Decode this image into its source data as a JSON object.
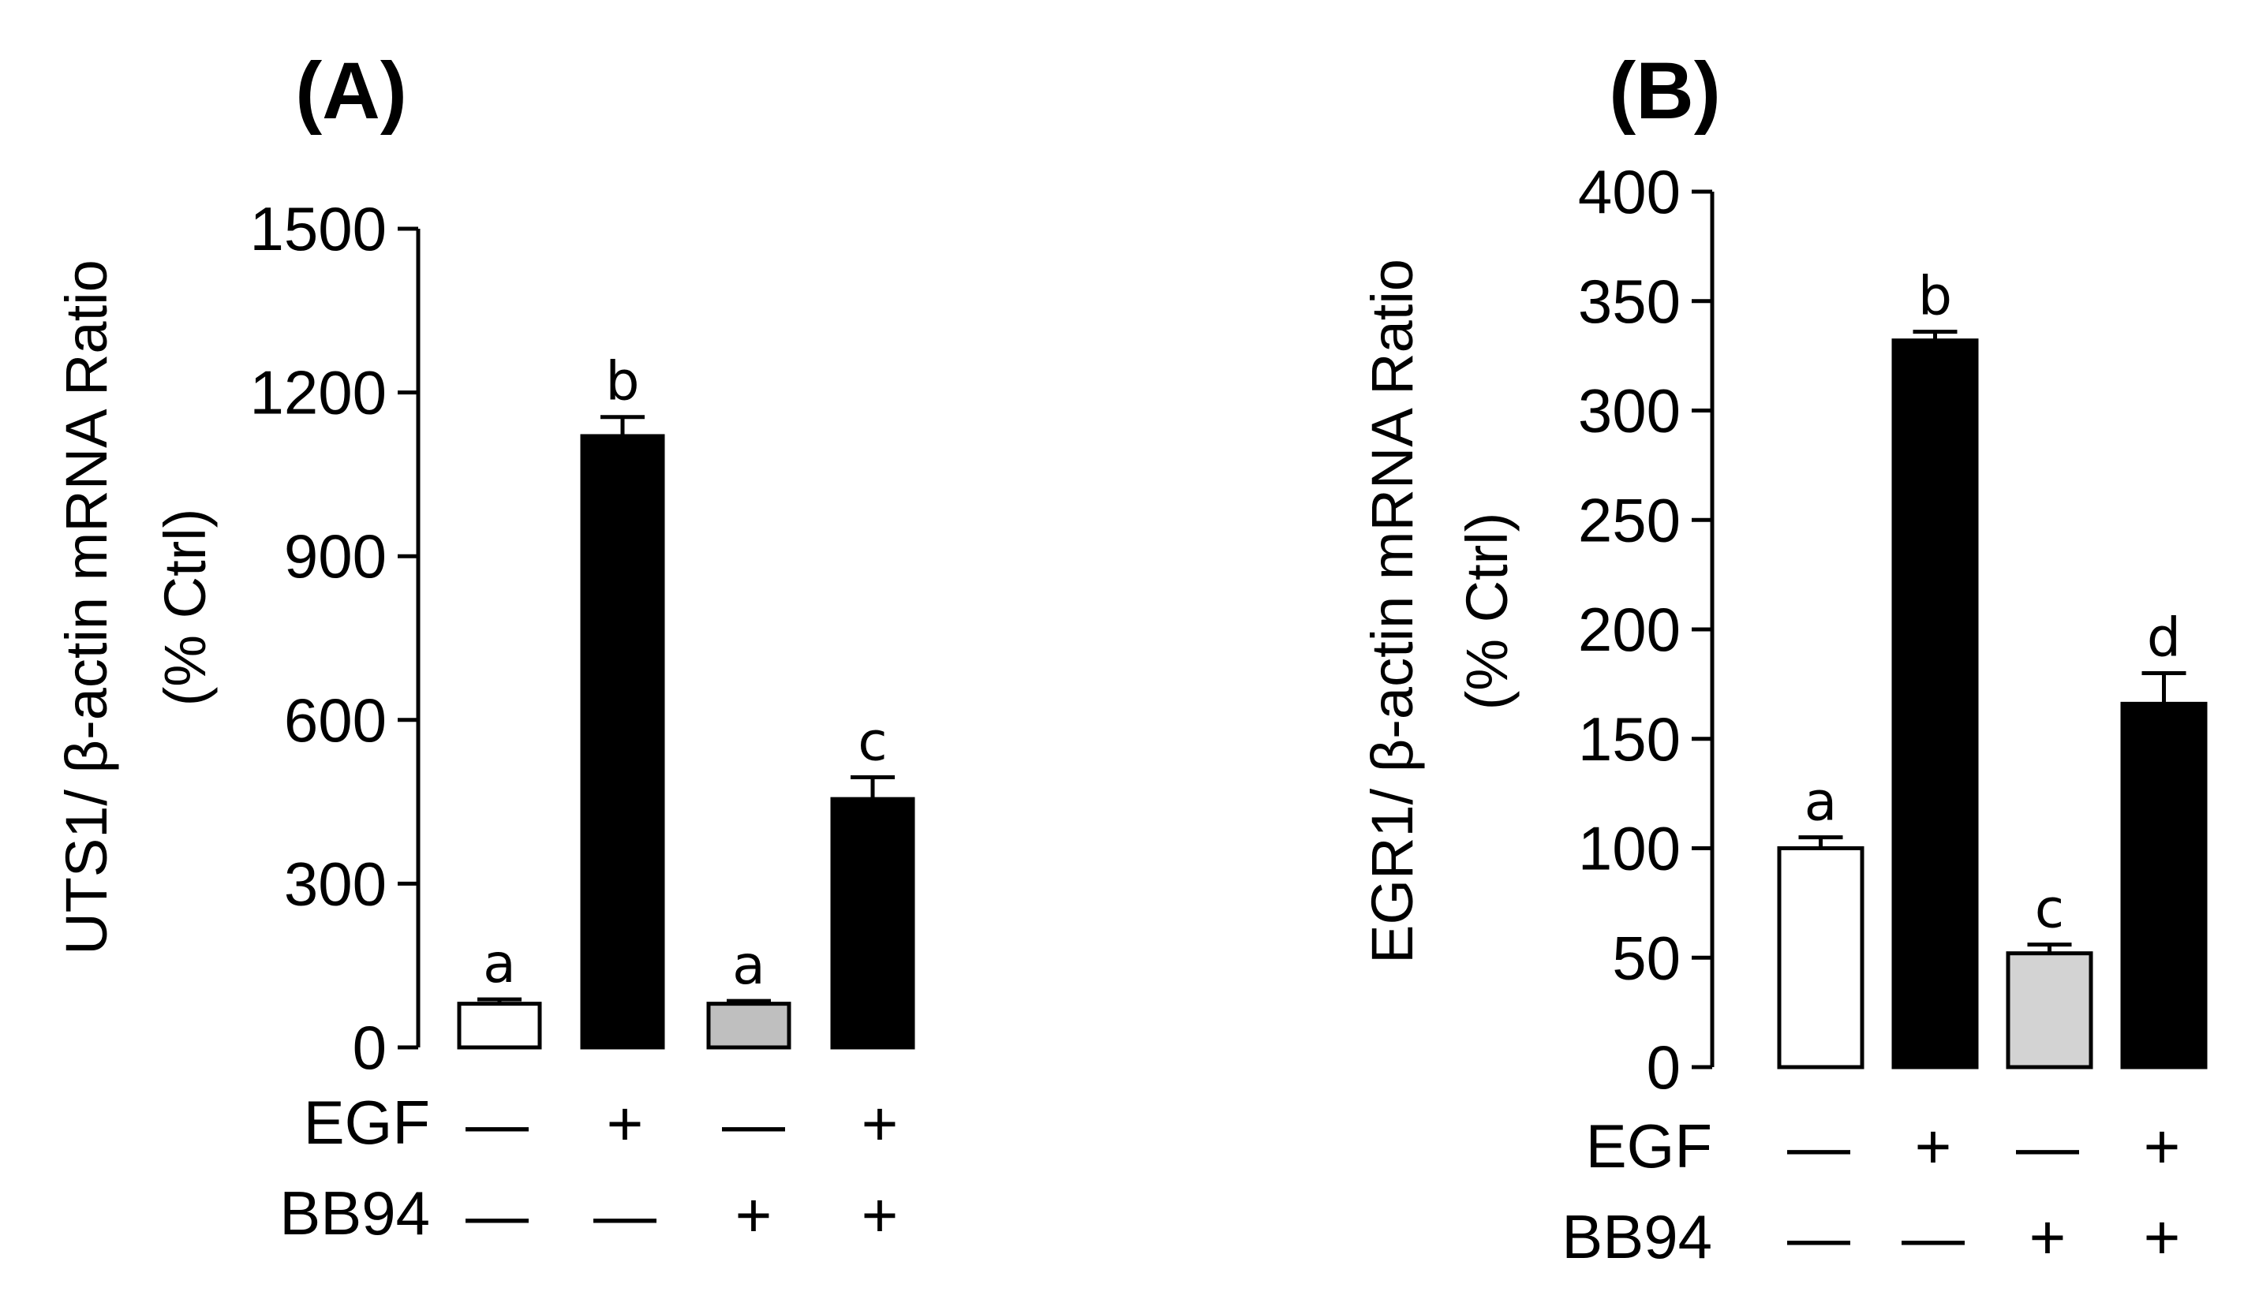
{
  "chart_data": [
    {
      "type": "bar",
      "title": "(A)",
      "ylabel": "UTS1/ β-actin mRNA Ratio",
      "ylabel2": "(% Ctrl)",
      "ylim": [
        0,
        1500
      ],
      "yticks": [
        "0",
        "300",
        "600",
        "900",
        "1200",
        "1500"
      ],
      "rows": [
        {
          "label": "EGF",
          "signs": [
            "—",
            "+",
            "—",
            "+"
          ]
        },
        {
          "label": "BB94",
          "signs": [
            "—",
            "—",
            "+",
            "+"
          ]
        }
      ],
      "values": [
        80,
        1120,
        80,
        455
      ],
      "errors": [
        8,
        35,
        5,
        40
      ],
      "letters": [
        "a",
        "b",
        "a",
        "c"
      ],
      "fills": [
        "#ffffff",
        "#000000",
        "#bfbfbf",
        "#000000"
      ]
    },
    {
      "type": "bar",
      "title": "(B)",
      "ylabel": "EGR1/ β-actin mRNA Ratio",
      "ylabel2": "(% Ctrl)",
      "ylim": [
        0,
        400
      ],
      "yticks": [
        "0",
        "50",
        "100",
        "150",
        "200",
        "250",
        "300",
        "350",
        "400"
      ],
      "rows": [
        {
          "label": "EGF",
          "signs": [
            "—",
            "+",
            "—",
            "+"
          ]
        },
        {
          "label": "BB94",
          "signs": [
            "—",
            "—",
            "+",
            "+"
          ]
        }
      ],
      "values": [
        100,
        332,
        52,
        166
      ],
      "errors": [
        5,
        4,
        4,
        14
      ],
      "letters": [
        "a",
        "b",
        "c",
        "d"
      ],
      "fills": [
        "#ffffff",
        "#000000",
        "#d3d3d3",
        "#000000"
      ]
    }
  ]
}
